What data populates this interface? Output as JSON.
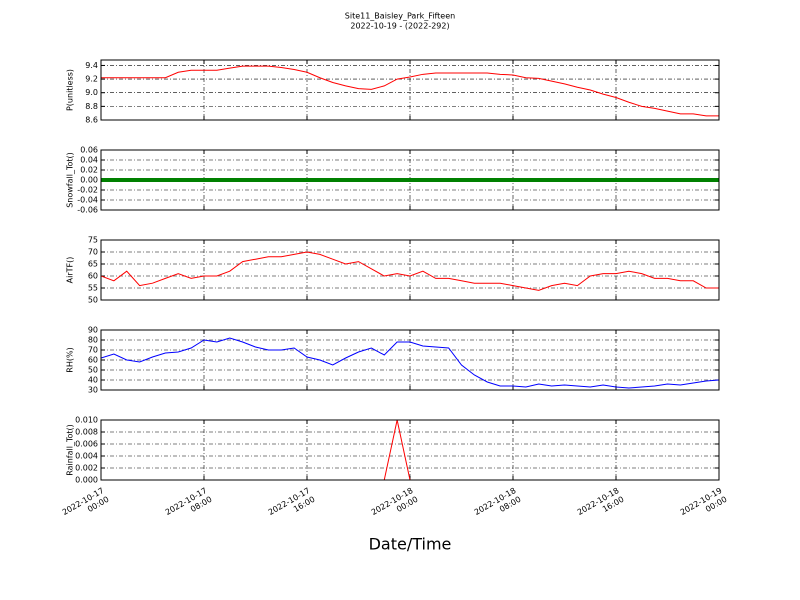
{
  "chart_data": [
    {
      "type": "line",
      "title": "Site11_Baisley_Park_Fifteen",
      "subtitle": "2022-10-19 - (2022-292)",
      "ylabel": "P(unitless)",
      "x": [
        "2022-10-17 00:00",
        "2022-10-17 01:00",
        "2022-10-17 02:00",
        "2022-10-17 03:00",
        "2022-10-17 04:00",
        "2022-10-17 05:00",
        "2022-10-17 06:00",
        "2022-10-17 07:00",
        "2022-10-17 08:00",
        "2022-10-17 09:00",
        "2022-10-17 10:00",
        "2022-10-17 11:00",
        "2022-10-17 12:00",
        "2022-10-17 13:00",
        "2022-10-17 14:00",
        "2022-10-17 15:00",
        "2022-10-17 16:00",
        "2022-10-17 17:00",
        "2022-10-17 18:00",
        "2022-10-17 19:00",
        "2022-10-17 20:00",
        "2022-10-17 21:00",
        "2022-10-17 22:00",
        "2022-10-17 23:00",
        "2022-10-18 00:00",
        "2022-10-18 01:00",
        "2022-10-18 02:00",
        "2022-10-18 03:00",
        "2022-10-18 04:00",
        "2022-10-18 05:00",
        "2022-10-18 06:00",
        "2022-10-18 07:00",
        "2022-10-18 08:00",
        "2022-10-18 09:00",
        "2022-10-18 10:00",
        "2022-10-18 11:00",
        "2022-10-18 12:00",
        "2022-10-18 13:00",
        "2022-10-18 14:00",
        "2022-10-18 15:00",
        "2022-10-18 16:00",
        "2022-10-18 17:00",
        "2022-10-18 18:00",
        "2022-10-18 19:00",
        "2022-10-18 20:00",
        "2022-10-18 21:00",
        "2022-10-18 22:00",
        "2022-10-18 23:00",
        "2022-10-19 00:00"
      ],
      "series": [
        {
          "color": "#ff0000",
          "values": [
            9.22,
            9.22,
            9.22,
            9.22,
            9.22,
            9.22,
            9.3,
            9.33,
            9.33,
            9.33,
            9.36,
            9.39,
            9.39,
            9.39,
            9.37,
            9.34,
            9.3,
            9.22,
            9.15,
            9.1,
            9.06,
            9.05,
            9.1,
            9.2,
            9.23,
            9.27,
            9.29,
            9.29,
            9.29,
            9.29,
            9.29,
            9.27,
            9.26,
            9.22,
            9.21,
            9.17,
            9.13,
            9.08,
            9.04,
            8.98,
            8.93,
            8.86,
            8.8,
            8.77,
            8.73,
            8.69,
            8.69,
            8.66,
            8.66
          ]
        }
      ],
      "xlim": [
        "2022-10-17 00:00",
        "2022-10-19 00:00"
      ],
      "ylim": [
        8.6,
        9.48
      ],
      "yticks": [
        8.6,
        8.8,
        {
          "value": 9,
          "label": "9.0"
        },
        9.2,
        9.4
      ],
      "grid": true
    },
    {
      "type": "line",
      "ylabel": "Snowfall_Tot()",
      "x": [
        "2022-10-17 00:00",
        "2022-10-17 01:00",
        "2022-10-17 02:00",
        "2022-10-17 03:00",
        "2022-10-17 04:00",
        "2022-10-17 05:00",
        "2022-10-17 06:00",
        "2022-10-17 07:00",
        "2022-10-17 08:00",
        "2022-10-17 09:00",
        "2022-10-17 10:00",
        "2022-10-17 11:00",
        "2022-10-17 12:00",
        "2022-10-17 13:00",
        "2022-10-17 14:00",
        "2022-10-17 15:00",
        "2022-10-17 16:00",
        "2022-10-17 17:00",
        "2022-10-17 18:00",
        "2022-10-17 19:00",
        "2022-10-17 20:00",
        "2022-10-17 21:00",
        "2022-10-17 22:00",
        "2022-10-17 23:00",
        "2022-10-18 00:00",
        "2022-10-18 01:00",
        "2022-10-18 02:00",
        "2022-10-18 03:00",
        "2022-10-18 04:00",
        "2022-10-18 05:00",
        "2022-10-18 06:00",
        "2022-10-18 07:00",
        "2022-10-18 08:00",
        "2022-10-18 09:00",
        "2022-10-18 10:00",
        "2022-10-18 11:00",
        "2022-10-18 12:00",
        "2022-10-18 13:00",
        "2022-10-18 14:00",
        "2022-10-18 15:00",
        "2022-10-18 16:00",
        "2022-10-18 17:00",
        "2022-10-18 18:00",
        "2022-10-18 19:00",
        "2022-10-18 20:00",
        "2022-10-18 21:00",
        "2022-10-18 22:00",
        "2022-10-18 23:00",
        "2022-10-19 00:00"
      ],
      "series": [
        {
          "color": "#008000",
          "values": [
            0,
            0,
            0,
            0,
            0,
            0,
            0,
            0,
            0,
            0,
            0,
            0,
            0,
            0,
            0,
            0,
            0,
            0,
            0,
            0,
            0,
            0,
            0,
            0,
            0,
            0,
            0,
            0,
            0,
            0,
            0,
            0,
            0,
            0,
            0,
            0,
            0,
            0,
            0,
            0,
            0,
            0,
            0,
            0,
            0,
            0,
            0,
            0,
            0
          ]
        }
      ],
      "xlim": [
        "2022-10-17 00:00",
        "2022-10-19 00:00"
      ],
      "ylim": [
        -0.06,
        0.06
      ],
      "yticks": [
        -0.06,
        -0.04,
        -0.02,
        {
          "value": 0,
          "label": "0.00"
        },
        0.02,
        0.04,
        0.06
      ],
      "grid": true
    },
    {
      "type": "line",
      "ylabel": "AirTF()",
      "x": [
        "2022-10-17 00:00",
        "2022-10-17 01:00",
        "2022-10-17 02:00",
        "2022-10-17 03:00",
        "2022-10-17 04:00",
        "2022-10-17 05:00",
        "2022-10-17 06:00",
        "2022-10-17 07:00",
        "2022-10-17 08:00",
        "2022-10-17 09:00",
        "2022-10-17 10:00",
        "2022-10-17 11:00",
        "2022-10-17 12:00",
        "2022-10-17 13:00",
        "2022-10-17 14:00",
        "2022-10-17 15:00",
        "2022-10-17 16:00",
        "2022-10-17 17:00",
        "2022-10-17 18:00",
        "2022-10-17 19:00",
        "2022-10-17 20:00",
        "2022-10-17 21:00",
        "2022-10-17 22:00",
        "2022-10-17 23:00",
        "2022-10-18 00:00",
        "2022-10-18 01:00",
        "2022-10-18 02:00",
        "2022-10-18 03:00",
        "2022-10-18 04:00",
        "2022-10-18 05:00",
        "2022-10-18 06:00",
        "2022-10-18 07:00",
        "2022-10-18 08:00",
        "2022-10-18 09:00",
        "2022-10-18 10:00",
        "2022-10-18 11:00",
        "2022-10-18 12:00",
        "2022-10-18 13:00",
        "2022-10-18 14:00",
        "2022-10-18 15:00",
        "2022-10-18 16:00",
        "2022-10-18 17:00",
        "2022-10-18 18:00",
        "2022-10-18 19:00",
        "2022-10-18 20:00",
        "2022-10-18 21:00",
        "2022-10-18 22:00",
        "2022-10-18 23:00",
        "2022-10-19 00:00"
      ],
      "series": [
        {
          "color": "#ff0000",
          "values": [
            60,
            58,
            62,
            56,
            57,
            59,
            61,
            59,
            60,
            60,
            62,
            66,
            67,
            68,
            68,
            69,
            70,
            69,
            67,
            65,
            66,
            63,
            60,
            61,
            60,
            62,
            59,
            59,
            58,
            57,
            57,
            57,
            56,
            55,
            54,
            56,
            57,
            56,
            60,
            61,
            61,
            62,
            61,
            59,
            59,
            58,
            58,
            55,
            55
          ]
        }
      ],
      "xlim": [
        "2022-10-17 00:00",
        "2022-10-19 00:00"
      ],
      "ylim": [
        50,
        75
      ],
      "yticks": [
        50,
        55,
        60,
        65,
        70,
        75
      ],
      "grid": true
    },
    {
      "type": "line",
      "ylabel": "RH(%)",
      "x": [
        "2022-10-17 00:00",
        "2022-10-17 01:00",
        "2022-10-17 02:00",
        "2022-10-17 03:00",
        "2022-10-17 04:00",
        "2022-10-17 05:00",
        "2022-10-17 06:00",
        "2022-10-17 07:00",
        "2022-10-17 08:00",
        "2022-10-17 09:00",
        "2022-10-17 10:00",
        "2022-10-17 11:00",
        "2022-10-17 12:00",
        "2022-10-17 13:00",
        "2022-10-17 14:00",
        "2022-10-17 15:00",
        "2022-10-17 16:00",
        "2022-10-17 17:00",
        "2022-10-17 18:00",
        "2022-10-17 19:00",
        "2022-10-17 20:00",
        "2022-10-17 21:00",
        "2022-10-17 22:00",
        "2022-10-17 23:00",
        "2022-10-18 00:00",
        "2022-10-18 01:00",
        "2022-10-18 02:00",
        "2022-10-18 03:00",
        "2022-10-18 04:00",
        "2022-10-18 05:00",
        "2022-10-18 06:00",
        "2022-10-18 07:00",
        "2022-10-18 08:00",
        "2022-10-18 09:00",
        "2022-10-18 10:00",
        "2022-10-18 11:00",
        "2022-10-18 12:00",
        "2022-10-18 13:00",
        "2022-10-18 14:00",
        "2022-10-18 15:00",
        "2022-10-18 16:00",
        "2022-10-18 17:00",
        "2022-10-18 18:00",
        "2022-10-18 19:00",
        "2022-10-18 20:00",
        "2022-10-18 21:00",
        "2022-10-18 22:00",
        "2022-10-18 23:00",
        "2022-10-19 00:00"
      ],
      "series": [
        {
          "color": "#0000ff",
          "values": [
            62,
            66,
            60,
            58,
            63,
            67,
            68,
            72,
            80,
            78,
            82,
            78,
            73,
            70,
            70,
            72,
            63,
            60,
            55,
            62,
            68,
            72,
            65,
            78,
            78,
            74,
            73,
            72,
            55,
            45,
            38,
            34,
            34,
            33,
            36,
            34,
            35,
            34,
            33,
            35,
            33,
            32,
            33,
            34,
            36,
            35,
            37,
            39,
            40
          ]
        }
      ],
      "xlim": [
        "2022-10-17 00:00",
        "2022-10-19 00:00"
      ],
      "ylim": [
        30,
        90
      ],
      "yticks": [
        30,
        40,
        50,
        60,
        70,
        80,
        90
      ],
      "grid": true
    },
    {
      "type": "line",
      "ylabel": "Rainfall_Tot()",
      "xlabel": "Date/Time",
      "x": [
        "2022-10-17 00:00",
        "2022-10-17 01:00",
        "2022-10-17 02:00",
        "2022-10-17 03:00",
        "2022-10-17 04:00",
        "2022-10-17 05:00",
        "2022-10-17 06:00",
        "2022-10-17 07:00",
        "2022-10-17 08:00",
        "2022-10-17 09:00",
        "2022-10-17 10:00",
        "2022-10-17 11:00",
        "2022-10-17 12:00",
        "2022-10-17 13:00",
        "2022-10-17 14:00",
        "2022-10-17 15:00",
        "2022-10-17 16:00",
        "2022-10-17 17:00",
        "2022-10-17 18:00",
        "2022-10-17 19:00",
        "2022-10-17 20:00",
        "2022-10-17 21:00",
        "2022-10-17 22:00",
        "2022-10-17 23:00",
        "2022-10-18 00:00",
        "2022-10-18 01:00",
        "2022-10-18 02:00",
        "2022-10-18 03:00",
        "2022-10-18 04:00",
        "2022-10-18 05:00",
        "2022-10-18 06:00",
        "2022-10-18 07:00",
        "2022-10-18 08:00",
        "2022-10-18 09:00",
        "2022-10-18 10:00",
        "2022-10-18 11:00",
        "2022-10-18 12:00",
        "2022-10-18 13:00",
        "2022-10-18 14:00",
        "2022-10-18 15:00",
        "2022-10-18 16:00",
        "2022-10-18 17:00",
        "2022-10-18 18:00",
        "2022-10-18 19:00",
        "2022-10-18 20:00",
        "2022-10-18 21:00",
        "2022-10-18 22:00",
        "2022-10-18 23:00",
        "2022-10-19 00:00"
      ],
      "series": [
        {
          "color": "#ff0000",
          "values": [
            0,
            0,
            0,
            0,
            0,
            0,
            0,
            0,
            0,
            0,
            0,
            0,
            0,
            0,
            0,
            0,
            0,
            0,
            0,
            0,
            0,
            0,
            0,
            0.01,
            0,
            0,
            0,
            0,
            0,
            0,
            0,
            0,
            0,
            0,
            0,
            0,
            0,
            0,
            0,
            0,
            0,
            0,
            0,
            0,
            0,
            0,
            0,
            0,
            0
          ]
        }
      ],
      "xlim": [
        "2022-10-17 00:00",
        "2022-10-19 00:00"
      ],
      "ylim": [
        0,
        0.01
      ],
      "yticks": [
        {
          "value": 0,
          "label": "0.000"
        },
        0.002,
        0.004,
        0.006,
        0.008,
        {
          "value": 0.01,
          "label": "0.010"
        }
      ],
      "xticks": [
        "2022-10-17 00:00",
        "2022-10-17 08:00",
        "2022-10-17 16:00",
        "2022-10-18 00:00",
        "2022-10-18 08:00",
        "2022-10-18 16:00",
        "2022-10-19 00:00"
      ],
      "grid": true
    }
  ]
}
